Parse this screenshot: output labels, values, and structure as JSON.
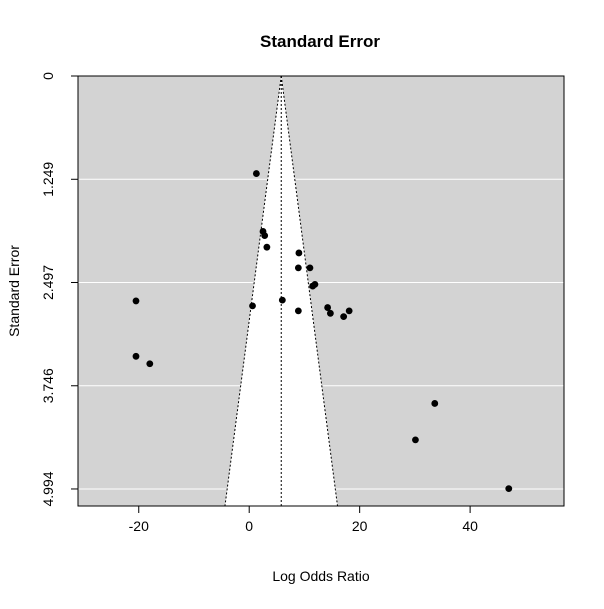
{
  "chart_data": {
    "type": "scatter",
    "title": "Standard Error",
    "xlabel": "Log Odds Ratio",
    "ylabel": "Standard Error",
    "xlim": [
      -31,
      57
    ],
    "ylim": [
      0,
      5.2
    ],
    "y_reversed": true,
    "x_ticks": [
      -20,
      0,
      20,
      40
    ],
    "x_tick_labels": [
      "-20",
      "0",
      "20",
      "40"
    ],
    "y_ticks": [
      0,
      1.249,
      2.497,
      3.746,
      4.994
    ],
    "y_tick_labels": [
      "0",
      "1.249",
      "2.497",
      "3.746",
      "4.994"
    ],
    "grid": "horizontal",
    "panel_color": "#d3d3d3",
    "funnel_color": "#ffffff",
    "point_color": "#000000",
    "funnel": {
      "center": 5.8,
      "se_max": 5.2,
      "multiplier": 1.96
    },
    "points": [
      {
        "x": 1.3,
        "y": 1.18
      },
      {
        "x": 2.5,
        "y": 1.88
      },
      {
        "x": 2.8,
        "y": 1.93
      },
      {
        "x": 3.2,
        "y": 2.07
      },
      {
        "x": 9.0,
        "y": 2.14
      },
      {
        "x": 8.9,
        "y": 2.32
      },
      {
        "x": 11.0,
        "y": 2.32
      },
      {
        "x": 11.9,
        "y": 2.52
      },
      {
        "x": 11.5,
        "y": 2.54
      },
      {
        "x": 6.0,
        "y": 2.71
      },
      {
        "x": 0.6,
        "y": 2.78
      },
      {
        "x": 8.9,
        "y": 2.84
      },
      {
        "x": 14.2,
        "y": 2.8
      },
      {
        "x": 14.7,
        "y": 2.87
      },
      {
        "x": 18.1,
        "y": 2.84
      },
      {
        "x": 17.1,
        "y": 2.91
      },
      {
        "x": -20.5,
        "y": 2.72
      },
      {
        "x": -20.5,
        "y": 3.39
      },
      {
        "x": -18.0,
        "y": 3.48
      },
      {
        "x": 33.6,
        "y": 3.96
      },
      {
        "x": 30.1,
        "y": 4.4
      },
      {
        "x": 47.0,
        "y": 4.99
      }
    ]
  }
}
